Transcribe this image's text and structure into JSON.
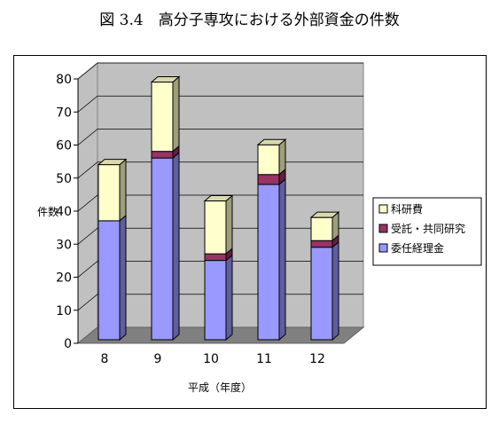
{
  "figure_title": "図 3.4　高分子専攻における外部資金の件数",
  "chart_data": {
    "type": "bar",
    "stacked": true,
    "three_d": true,
    "categories": [
      "8",
      "9",
      "10",
      "11",
      "12"
    ],
    "series": [
      {
        "name": "委任経理金",
        "values": [
          36,
          55,
          24,
          47,
          28
        ],
        "color": "#9999ff"
      },
      {
        "name": "受託・共同研究",
        "values": [
          0,
          2,
          2,
          3,
          2
        ],
        "color": "#993366"
      },
      {
        "name": "科研費",
        "values": [
          17,
          21,
          16,
          9,
          7
        ],
        "color": "#ffffcc"
      }
    ],
    "legend_order": [
      "科研費",
      "受託・共同研究",
      "委任経理金"
    ],
    "xlabel": "平成（年度）",
    "ylabel": "件数",
    "ylim": [
      0,
      80
    ],
    "yticks": [
      0,
      10,
      20,
      30,
      40,
      50,
      60,
      70,
      80
    ],
    "grid": true,
    "legend_position": "right",
    "wall_color": "#c0c0c0"
  }
}
